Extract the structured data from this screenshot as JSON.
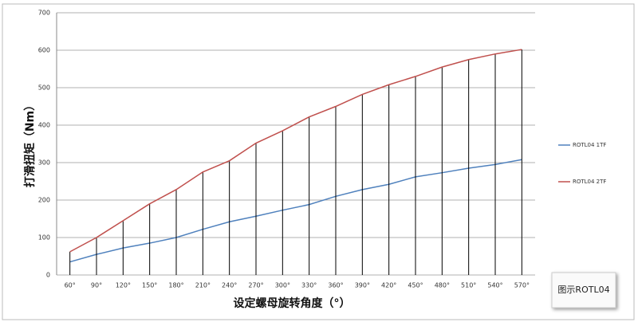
{
  "chart_data": {
    "type": "line",
    "x_label": "设定螺母旋转角度（°）",
    "y_label": "打滑扭矩（Nm）",
    "annotation": "图示ROTL04",
    "categories": [
      "60°",
      "90°",
      "120°",
      "150°",
      "180°",
      "210°",
      "240°",
      "270°",
      "300°",
      "330°",
      "360°",
      "390°",
      "420°",
      "450°",
      "480°",
      "510°",
      "540°",
      "570°"
    ],
    "series": [
      {
        "name": "ROTL04 1TF",
        "color": "#4f81bd",
        "values": [
          35,
          55,
          72,
          85,
          100,
          122,
          142,
          157,
          173,
          188,
          210,
          228,
          242,
          262,
          273,
          285,
          295,
          308
        ]
      },
      {
        "name": "ROTL04 2TF",
        "color": "#c0504d",
        "values": [
          62,
          100,
          145,
          190,
          228,
          275,
          305,
          352,
          385,
          422,
          450,
          482,
          508,
          530,
          555,
          575,
          590,
          602
        ],
        "drop_lines": true
      }
    ],
    "ylim": [
      0,
      700
    ],
    "yticks": [
      0,
      100,
      200,
      300,
      400,
      500,
      600,
      700
    ],
    "grid": true,
    "legend": "right"
  }
}
